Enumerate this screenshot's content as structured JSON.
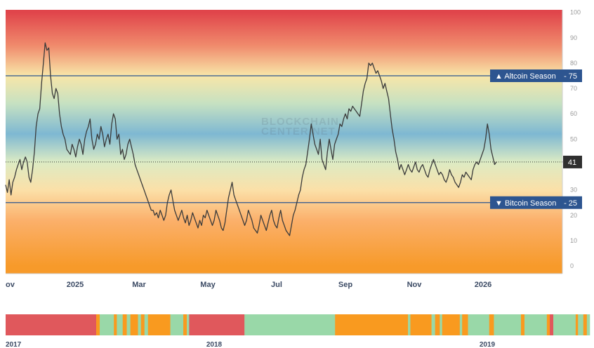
{
  "chart_data": [
    {
      "type": "line",
      "title": "",
      "watermark": [
        "BLOCKCHAIN",
        "CENTER.NET"
      ],
      "ylim": [
        -3,
        101
      ],
      "yticks": [
        0,
        10,
        20,
        30,
        40,
        50,
        60,
        70,
        80,
        90,
        100
      ],
      "grid": false,
      "xtick_labels": [
        "ov",
        "2025",
        "Mar",
        "May",
        "Jul",
        "Sep",
        "Nov",
        "2026"
      ],
      "background_gradient": [
        {
          "value": 100,
          "color": "#e0454b"
        },
        {
          "value": 87,
          "color": "#f08a6c"
        },
        {
          "value": 75,
          "color": "#f8e6a8"
        },
        {
          "value": 64,
          "color": "#c6e1c2"
        },
        {
          "value": 52,
          "color": "#7eb8d2"
        },
        {
          "value": 41,
          "color": "#dcebc4"
        },
        {
          "value": 30,
          "color": "#fbe0a8"
        },
        {
          "value": 18,
          "color": "#fbb06b"
        },
        {
          "value": 0,
          "color": "#f79a2a"
        }
      ],
      "thresholds": [
        {
          "name": "Altcoin Season",
          "label": "▲ Altcoin Season",
          "value": 75,
          "color": "#2d5590"
        },
        {
          "name": "Bitcoin Season",
          "label": "▼ Bitcoin Season",
          "value": 25,
          "color": "#2d5590"
        }
      ],
      "current_value": 41,
      "line_color": "#3a3a3a",
      "series": [
        {
          "values": [
            32,
            29,
            34,
            28,
            33,
            35,
            38,
            40,
            42,
            38,
            41,
            43,
            41,
            35,
            33,
            38,
            45,
            55,
            60,
            62,
            72,
            80,
            88,
            85,
            86,
            75,
            68,
            66,
            70,
            68,
            60,
            55,
            52,
            50,
            46,
            45,
            44,
            48,
            46,
            43,
            47,
            50,
            48,
            44,
            50,
            53,
            55,
            58,
            50,
            46,
            48,
            52,
            50,
            55,
            52,
            47,
            50,
            52,
            48,
            56,
            60,
            58,
            50,
            52,
            44,
            46,
            42,
            44,
            48,
            50,
            47,
            44,
            40,
            38,
            36,
            34,
            32,
            30,
            28,
            26,
            24,
            22,
            22,
            20,
            21,
            19,
            22,
            20,
            18,
            20,
            25,
            28,
            30,
            26,
            22,
            20,
            18,
            20,
            22,
            19,
            17,
            20,
            16,
            18,
            21,
            19,
            17,
            15,
            18,
            16,
            20,
            19,
            22,
            20,
            18,
            16,
            18,
            22,
            20,
            18,
            15,
            14,
            17,
            22,
            27,
            30,
            33,
            28,
            26,
            24,
            22,
            20,
            18,
            16,
            18,
            22,
            20,
            18,
            15,
            14,
            13,
            16,
            20,
            18,
            16,
            14,
            17,
            20,
            22,
            18,
            16,
            15,
            19,
            22,
            18,
            16,
            14,
            13,
            12,
            16,
            20,
            22,
            25,
            28,
            30,
            35,
            38,
            40,
            45,
            50,
            56,
            52,
            48,
            46,
            44,
            50,
            42,
            40,
            38,
            45,
            50,
            46,
            42,
            48,
            50,
            52,
            56,
            55,
            58,
            60,
            58,
            62,
            61,
            63,
            62,
            61,
            60,
            59,
            64,
            69,
            72,
            74,
            80,
            79,
            80,
            78,
            76,
            77,
            75,
            73,
            70,
            72,
            69,
            66,
            60,
            54,
            50,
            45,
            42,
            38,
            40,
            38,
            36,
            38,
            40,
            38,
            37,
            39,
            41,
            38,
            37,
            39,
            40,
            38,
            36,
            35,
            38,
            40,
            42,
            40,
            38,
            36,
            37,
            36,
            34,
            33,
            35,
            38,
            36,
            35,
            33,
            32,
            31,
            33,
            36,
            35,
            37,
            36,
            35,
            34,
            38,
            40,
            41,
            40,
            42,
            44,
            46,
            50,
            56,
            52,
            46,
            43,
            40,
            41
          ]
        }
      ]
    },
    {
      "type": "heatmap",
      "title": "",
      "xtick_labels": [
        "2017",
        "2018",
        "2019"
      ],
      "legend": null,
      "categories": [
        "bitcoin",
        "neutral",
        "altcoin"
      ],
      "colors": {
        "bitcoin": "#f99a1f",
        "neutral": "#99d8a8",
        "altcoin": "#e0585c"
      },
      "segments": [
        {
          "state": "altcoin",
          "span": 15.4
        },
        {
          "state": "bitcoin",
          "span": 0.6
        },
        {
          "state": "neutral",
          "span": 2.4
        },
        {
          "state": "bitcoin",
          "span": 0.5
        },
        {
          "state": "neutral",
          "span": 1.0
        },
        {
          "state": "bitcoin",
          "span": 0.7
        },
        {
          "state": "neutral",
          "span": 0.6
        },
        {
          "state": "bitcoin",
          "span": 1.3
        },
        {
          "state": "neutral",
          "span": 0.5
        },
        {
          "state": "bitcoin",
          "span": 0.6
        },
        {
          "state": "neutral",
          "span": 0.6
        },
        {
          "state": "bitcoin",
          "span": 3.8
        },
        {
          "state": "neutral",
          "span": 2.2
        },
        {
          "state": "bitcoin",
          "span": 0.6
        },
        {
          "state": "neutral",
          "span": 0.4
        },
        {
          "state": "altcoin",
          "span": 9.4
        },
        {
          "state": "neutral",
          "span": 15.4
        },
        {
          "state": "bitcoin",
          "span": 12.4
        },
        {
          "state": "neutral",
          "span": 0.4
        },
        {
          "state": "bitcoin",
          "span": 3.6
        },
        {
          "state": "neutral",
          "span": 0.6
        },
        {
          "state": "bitcoin",
          "span": 0.8
        },
        {
          "state": "neutral",
          "span": 0.4
        },
        {
          "state": "bitcoin",
          "span": 3.0
        },
        {
          "state": "neutral",
          "span": 0.4
        },
        {
          "state": "bitcoin",
          "span": 1.0
        },
        {
          "state": "neutral",
          "span": 3.6
        },
        {
          "state": "bitcoin",
          "span": 0.8
        },
        {
          "state": "neutral",
          "span": 4.6
        },
        {
          "state": "bitcoin",
          "span": 0.6
        },
        {
          "state": "neutral",
          "span": 3.8
        },
        {
          "state": "bitcoin",
          "span": 0.5
        },
        {
          "state": "altcoin",
          "span": 0.6
        },
        {
          "state": "neutral",
          "span": 3.8
        },
        {
          "state": "bitcoin",
          "span": 0.4
        },
        {
          "state": "neutral",
          "span": 0.9
        },
        {
          "state": "bitcoin",
          "span": 0.6
        },
        {
          "state": "neutral",
          "span": 0.5
        }
      ]
    }
  ]
}
